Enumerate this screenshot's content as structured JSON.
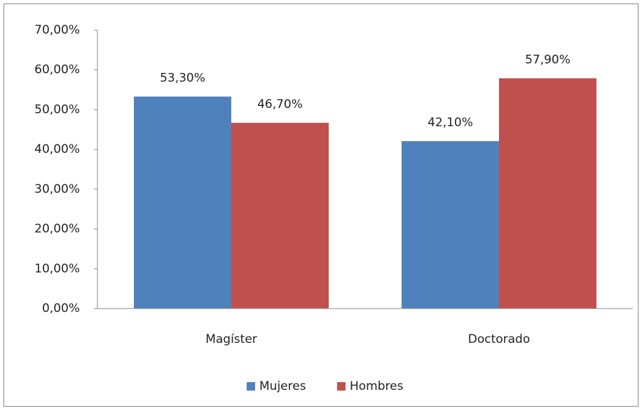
{
  "chart_data": {
    "type": "bar",
    "categories": [
      "Magíster",
      "Doctorado"
    ],
    "series": [
      {
        "name": "Mujeres",
        "color": "#4f81bd",
        "values": [
          53.3,
          42.1
        ],
        "value_labels": [
          "53,30%",
          "42,10%"
        ]
      },
      {
        "name": "Hombres",
        "color": "#c0504d",
        "values": [
          46.7,
          57.9
        ],
        "value_labels": [
          "46,70%",
          "57,90%"
        ]
      }
    ],
    "ylim": [
      0,
      70
    ],
    "yticks": [
      {
        "value": 0,
        "label": "0,00%"
      },
      {
        "value": 10,
        "label": "10,00%"
      },
      {
        "value": 20,
        "label": "20,00%"
      },
      {
        "value": 30,
        "label": "30,00%"
      },
      {
        "value": 40,
        "label": "40,00%"
      },
      {
        "value": 50,
        "label": "50,00%"
      },
      {
        "value": 60,
        "label": "60,00%"
      },
      {
        "value": 70,
        "label": "70,00%"
      }
    ],
    "grid": false,
    "legend": "bottom"
  }
}
